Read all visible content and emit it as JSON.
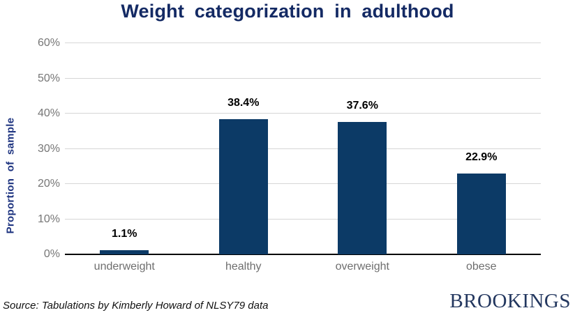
{
  "header": {
    "title": "Weight categorization in adulthood"
  },
  "footer": {
    "source_note": "Source: Tabulations by Kimberly Howard of NLSY79 data",
    "logo_text": "BROOKINGS"
  },
  "colors": {
    "bar": "#0c3a66",
    "title": "#142a64",
    "y_axis_label": "#1e3480",
    "tick_label": "#767676",
    "gridline": "#d6d6d6",
    "axis_line": "#000000",
    "value_label": "#000000",
    "logo": "#23375f"
  },
  "chart_data": {
    "type": "bar",
    "title": "Weight categorization in adulthood",
    "categories": [
      "underweight",
      "healthy",
      "overweight",
      "obese"
    ],
    "values": [
      1.1,
      38.4,
      37.6,
      22.9
    ],
    "value_labels": [
      "1.1%",
      "38.4%",
      "37.6%",
      "22.9%"
    ],
    "xlabel": "",
    "ylabel": "Proportion of sample",
    "ylim": [
      0,
      60
    ],
    "ytick_values": [
      0,
      10,
      20,
      30,
      40,
      50,
      60
    ],
    "ytick_labels": [
      "0%",
      "10%",
      "20%",
      "30%",
      "40%",
      "50%",
      "60%"
    ],
    "grid": true,
    "legend": false,
    "bar_color": "#0c3a66"
  }
}
